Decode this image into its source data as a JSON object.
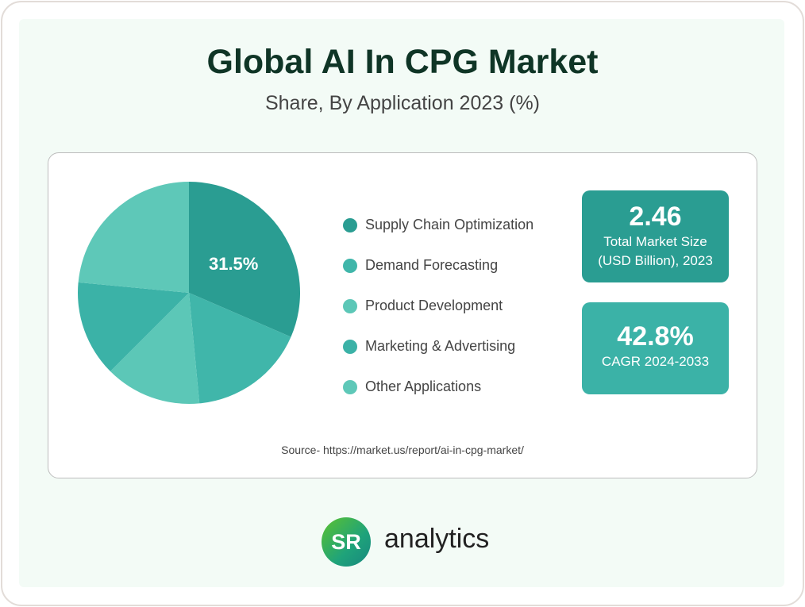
{
  "chart_data": {
    "type": "pie",
    "title": "Global AI In CPG Market",
    "subtitle": "Share, By Application 2023 (%)",
    "categories": [
      "Supply Chain Optimization",
      "Demand Forecasting",
      "Product Development",
      "Marketing & Advertising",
      "Other Applications"
    ],
    "values": [
      31.5,
      17,
      14,
      14,
      23.5
    ],
    "colors": [
      "#2a9d92",
      "#40b6aa",
      "#5cc7b7",
      "#3bb2a7",
      "#5ec8b8"
    ],
    "data_labels": [
      "31.5%"
    ],
    "legend_placement": "right"
  },
  "stats": [
    {
      "value": "2.46",
      "label_line1": "Total Market Size",
      "label_line2": "(USD Billion), 2023"
    },
    {
      "value": "42.8%",
      "label_line1": "CAGR 2024-2033"
    }
  ],
  "source": "Source- https://market.us/report/ai-in-cpg-market/",
  "brand": {
    "logo": "SR",
    "name": "analytics"
  }
}
